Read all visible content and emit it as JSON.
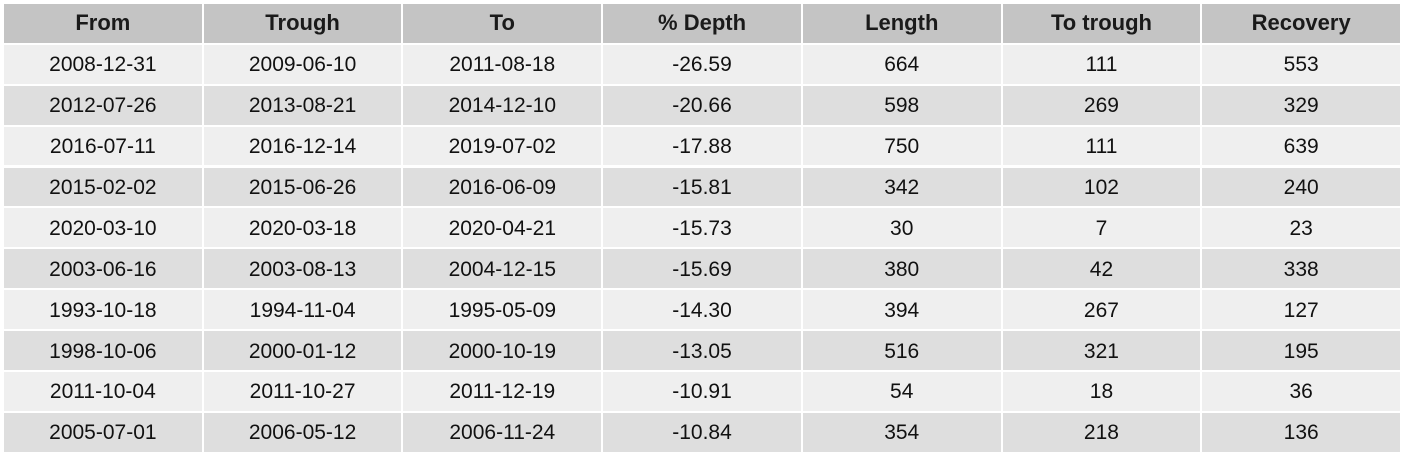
{
  "table": {
    "headers": [
      "From",
      "Trough",
      "To",
      "% Depth",
      "Length",
      "To trough",
      "Recovery"
    ],
    "rows": [
      [
        "2008-12-31",
        "2009-06-10",
        "2011-08-18",
        "-26.59",
        "664",
        "111",
        "553"
      ],
      [
        "2012-07-26",
        "2013-08-21",
        "2014-12-10",
        "-20.66",
        "598",
        "269",
        "329"
      ],
      [
        "2016-07-11",
        "2016-12-14",
        "2019-07-02",
        "-17.88",
        "750",
        "111",
        "639"
      ],
      [
        "2015-02-02",
        "2015-06-26",
        "2016-06-09",
        "-15.81",
        "342",
        "102",
        "240"
      ],
      [
        "2020-03-10",
        "2020-03-18",
        "2020-04-21",
        "-15.73",
        "30",
        "7",
        "23"
      ],
      [
        "2003-06-16",
        "2003-08-13",
        "2004-12-15",
        "-15.69",
        "380",
        "42",
        "338"
      ],
      [
        "1993-10-18",
        "1994-11-04",
        "1995-05-09",
        "-14.30",
        "394",
        "267",
        "127"
      ],
      [
        "1998-10-06",
        "2000-01-12",
        "2000-10-19",
        "-13.05",
        "516",
        "321",
        "195"
      ],
      [
        "2011-10-04",
        "2011-10-27",
        "2011-12-19",
        "-10.91",
        "54",
        "18",
        "36"
      ],
      [
        "2005-07-01",
        "2006-05-12",
        "2006-11-24",
        "-10.84",
        "354",
        "218",
        "136"
      ]
    ]
  },
  "colors": {
    "header_bg": "#c4c4c4",
    "row_odd_bg": "#efefef",
    "row_even_bg": "#dedede"
  }
}
